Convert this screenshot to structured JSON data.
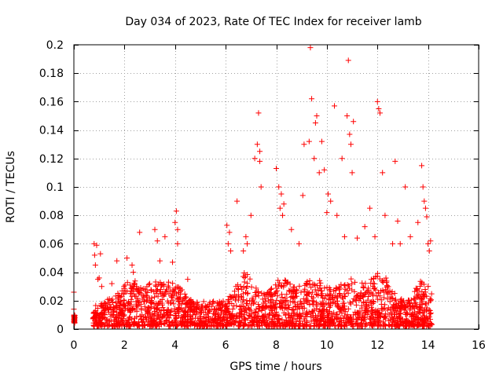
{
  "chart_data": {
    "type": "scatter",
    "title": "Day 034 of 2023, Rate Of TEC Index for receiver lamb",
    "xlabel": "GPS time / hours",
    "ylabel": "ROTI / TECUs",
    "xlim": [
      0,
      16
    ],
    "ylim": [
      0,
      0.2
    ],
    "xticks": [
      0,
      2,
      4,
      6,
      8,
      10,
      12,
      14,
      16
    ],
    "yticks": [
      0,
      0.02,
      0.04,
      0.06,
      0.08,
      0.1,
      0.12,
      0.14,
      0.16,
      0.18,
      0.2
    ],
    "xtick_labels": [
      "0",
      "2",
      "4",
      "6",
      "8",
      "10",
      "12",
      "14",
      "16"
    ],
    "ytick_labels": [
      "0",
      "0.02",
      "0.04",
      "0.06",
      "0.08",
      "0.1",
      "0.12",
      "0.14",
      "0.16",
      "0.18",
      "0.2"
    ],
    "grid": true,
    "marker": "+",
    "color": "#ff0000",
    "series": [
      {
        "name": "ROTI",
        "x": [
          0.0,
          0.0,
          0.02,
          0.02,
          0.8,
          0.82,
          0.85,
          0.9,
          0.95,
          1.0,
          1.05,
          1.1,
          1.5,
          1.7,
          2.1,
          2.3,
          2.35,
          2.6,
          3.2,
          3.3,
          3.4,
          3.6,
          3.9,
          4.0,
          4.05,
          4.1,
          4.1,
          4.5,
          6.05,
          6.1,
          6.15,
          6.2,
          6.45,
          6.7,
          6.8,
          6.85,
          7.0,
          7.15,
          7.25,
          7.3,
          7.35,
          7.35,
          7.4,
          8.0,
          8.1,
          8.15,
          8.2,
          8.25,
          8.3,
          8.6,
          8.9,
          9.05,
          9.1,
          9.3,
          9.35,
          9.4,
          9.5,
          9.55,
          9.6,
          9.7,
          9.8,
          9.9,
          10.0,
          10.05,
          10.15,
          10.3,
          10.4,
          10.6,
          10.7,
          10.8,
          10.85,
          10.9,
          10.95,
          11.0,
          11.05,
          11.2,
          11.5,
          11.7,
          11.9,
          12.0,
          12.05,
          12.1,
          12.2,
          12.3,
          12.6,
          12.7,
          12.8,
          12.9,
          13.1,
          13.3,
          13.6,
          13.75,
          13.8,
          13.85,
          13.9,
          13.95,
          14.0,
          14.05,
          14.1
        ],
        "y": [
          0.026,
          0.014,
          0.008,
          0.005,
          0.06,
          0.052,
          0.045,
          0.059,
          0.035,
          0.036,
          0.053,
          0.03,
          0.032,
          0.048,
          0.05,
          0.045,
          0.04,
          0.068,
          0.07,
          0.062,
          0.048,
          0.065,
          0.047,
          0.075,
          0.083,
          0.07,
          0.06,
          0.035,
          0.073,
          0.06,
          0.068,
          0.055,
          0.09,
          0.055,
          0.065,
          0.06,
          0.08,
          0.12,
          0.13,
          0.152,
          0.125,
          0.118,
          0.1,
          0.113,
          0.1,
          0.085,
          0.095,
          0.08,
          0.088,
          0.07,
          0.06,
          0.094,
          0.13,
          0.132,
          0.198,
          0.162,
          0.12,
          0.145,
          0.15,
          0.11,
          0.132,
          0.112,
          0.082,
          0.095,
          0.09,
          0.157,
          0.08,
          0.12,
          0.065,
          0.15,
          0.189,
          0.137,
          0.13,
          0.11,
          0.146,
          0.064,
          0.072,
          0.085,
          0.065,
          0.16,
          0.155,
          0.152,
          0.11,
          0.08,
          0.06,
          0.118,
          0.076,
          0.06,
          0.1,
          0.065,
          0.075,
          0.115,
          0.1,
          0.09,
          0.085,
          0.079,
          0.06,
          0.055,
          0.062
        ]
      }
    ]
  }
}
